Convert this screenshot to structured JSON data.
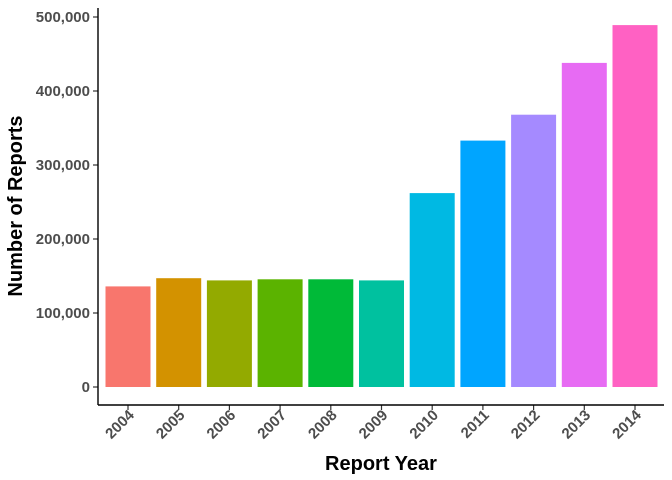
{
  "chart_data": {
    "type": "bar",
    "categories": [
      "2004",
      "2005",
      "2006",
      "2007",
      "2008",
      "2009",
      "2010",
      "2011",
      "2012",
      "2013",
      "2014"
    ],
    "values": [
      136000,
      147000,
      144000,
      145500,
      145500,
      144000,
      262000,
      333000,
      368000,
      438000,
      489000
    ],
    "colors": [
      "#F8766D",
      "#D39200",
      "#93AA00",
      "#5BB300",
      "#00BA38",
      "#00C19F",
      "#00B9E3",
      "#00A5FF",
      "#A58AFF",
      "#E76BF3",
      "#FF61C3"
    ],
    "xlabel": "Report Year",
    "ylabel": "Number of Reports",
    "ylim": [
      0,
      500000
    ],
    "yticks": [
      0,
      100000,
      200000,
      300000,
      400000,
      500000
    ],
    "ytick_labels": [
      "0",
      "100,000",
      "200,000",
      "300,000",
      "400,000",
      "500,000"
    ],
    "grid": false,
    "legend": "none"
  }
}
